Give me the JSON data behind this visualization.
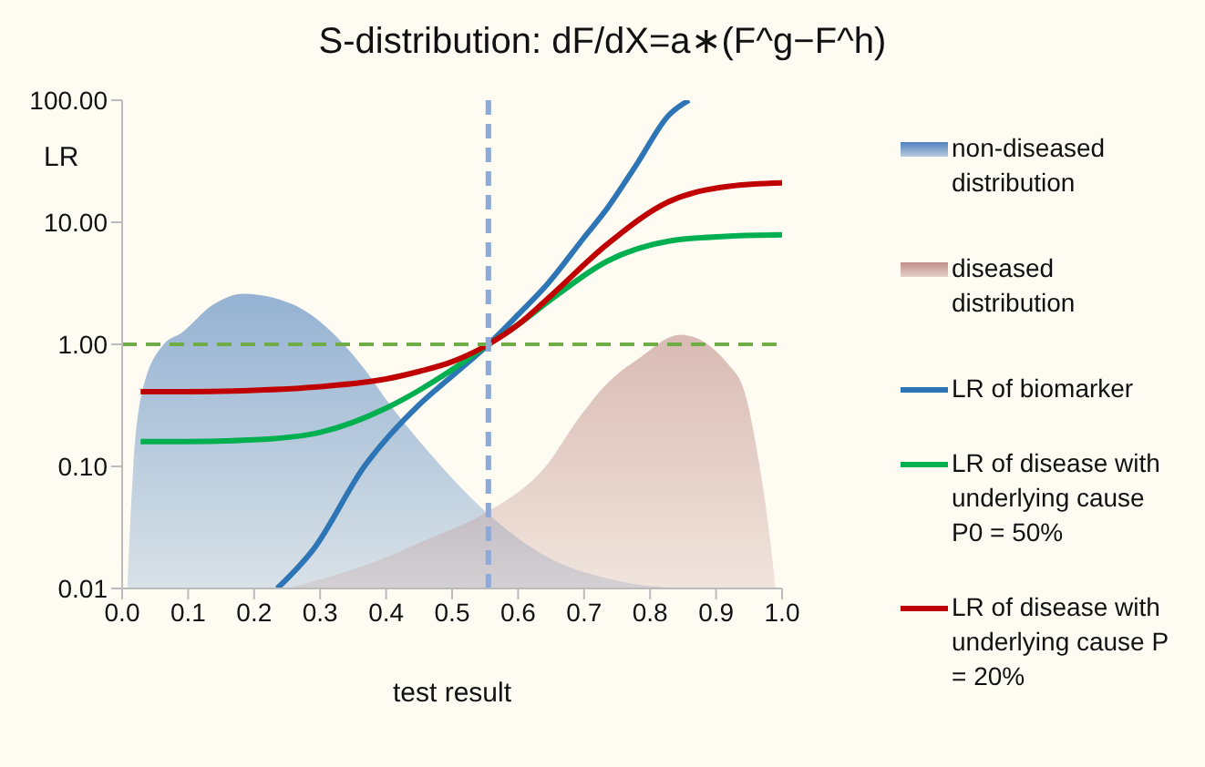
{
  "chart_data": {
    "type": "line",
    "title": "S-distribution:  dF/dX=a∗(F^g−F^h)",
    "xlabel": "test result",
    "ylabel": "LR",
    "log": "y",
    "xlim": [
      0,
      1
    ],
    "xticks": [
      {
        "value": 0,
        "label": "0.0"
      },
      0.1,
      0.2,
      0.3,
      0.4,
      0.5,
      0.6,
      0.7,
      0.8,
      0.9,
      {
        "value": 1,
        "label": "1.0"
      }
    ],
    "ylim": [
      0.01,
      100
    ],
    "yticks": [
      {
        "value": 0.01,
        "label": "0.01"
      },
      {
        "value": 0.1,
        "label": "0.10"
      },
      {
        "value": 1,
        "label": "1.00"
      },
      {
        "value": 10,
        "label": "10.00"
      },
      {
        "value": 100,
        "label": "100.00"
      }
    ],
    "grid": false,
    "legend": "right",
    "marker": "none",
    "ref_lines": [
      {
        "axis": "y",
        "value": 1,
        "color": "#70ad47",
        "line_style": "dashed"
      },
      {
        "axis": "x",
        "value": 0.555,
        "color": "#8eaadb",
        "line_style": "dashed"
      }
    ],
    "series": [
      {
        "name": "non-diseased distribution",
        "type": "area",
        "color": "#4f81bd",
        "x": [
          0.008,
          0.017,
          0.03,
          0.063,
          0.09,
          0.137,
          0.183,
          0.23,
          0.276,
          0.37,
          0.404,
          0.46,
          0.552,
          0.645,
          0.737,
          0.85
        ],
        "values": [
          0.01,
          0.1,
          0.4,
          1,
          1.24,
          2.1,
          2.6,
          2.4,
          1.9,
          0.6,
          0.33,
          0.14,
          0.042,
          0.018,
          0.012,
          0.01
        ]
      },
      {
        "name": "diseased distribution",
        "type": "area",
        "color": "#c0908a",
        "x": [
          0.25,
          0.4,
          0.46,
          0.552,
          0.645,
          0.69,
          0.737,
          0.782,
          0.846,
          0.92,
          0.943,
          0.966,
          0.985,
          0.99
        ],
        "values": [
          0.01,
          0.018,
          0.025,
          0.042,
          0.105,
          0.24,
          0.49,
          0.76,
          1.2,
          0.67,
          0.41,
          0.1,
          0.018,
          0.01
        ]
      },
      {
        "name": "LR of biomarker",
        "color": "#2e75b6",
        "x": [
          0.235,
          0.29,
          0.367,
          0.45,
          0.5,
          0.555,
          0.6,
          0.644,
          0.7,
          0.735,
          0.78,
          0.828,
          0.859
        ],
        "values": [
          0.01,
          0.021,
          0.1,
          0.32,
          0.55,
          1,
          1.75,
          3.1,
          7.5,
          13,
          30,
          75,
          100
        ]
      },
      {
        "name": "LR of disease with underlying cause P0 =  50%",
        "color": "#00b050",
        "x": [
          0.028,
          0.1,
          0.2,
          0.3,
          0.4,
          0.45,
          0.5,
          0.555,
          0.6,
          0.653,
          0.735,
          0.828,
          0.92,
          1.0
        ],
        "values": [
          0.16,
          0.16,
          0.165,
          0.19,
          0.3,
          0.42,
          0.62,
          1,
          1.45,
          2.4,
          4.8,
          7,
          7.7,
          7.9
        ]
      },
      {
        "name": "LR of disease with underlying cause P = 20%",
        "color": "#c00000",
        "x": [
          0.028,
          0.1,
          0.2,
          0.3,
          0.4,
          0.45,
          0.5,
          0.555,
          0.6,
          0.653,
          0.735,
          0.828,
          0.92,
          1.0
        ],
        "values": [
          0.41,
          0.41,
          0.42,
          0.45,
          0.52,
          0.6,
          0.72,
          1,
          1.45,
          2.6,
          6.6,
          14.7,
          19.7,
          21
        ]
      }
    ]
  }
}
